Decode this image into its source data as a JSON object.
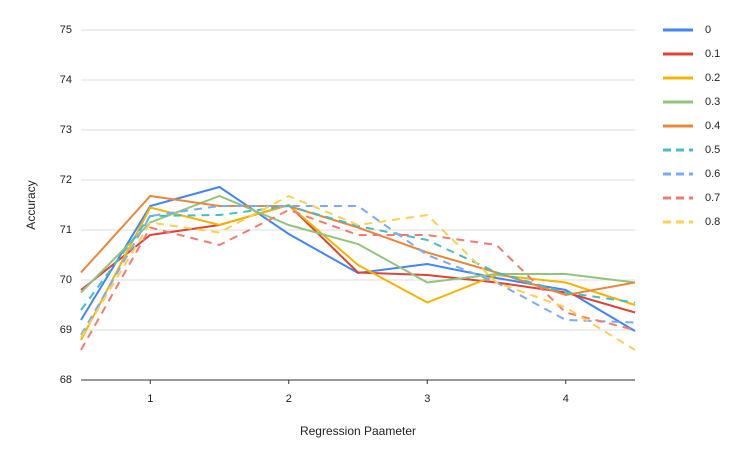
{
  "chart_data": {
    "type": "line",
    "x_label": "Regression Paameter",
    "y_label": "Accuracy",
    "x": [
      0.5,
      1,
      1.5,
      2,
      2.5,
      3,
      3.5,
      4,
      4.5
    ],
    "xlim": [
      0.5,
      4.5
    ],
    "xticks": [
      1,
      2,
      3,
      4
    ],
    "ylim": [
      68,
      75
    ],
    "yticks": [
      68,
      69,
      70,
      71,
      72,
      73,
      74,
      75
    ],
    "grid": true,
    "legend": "right",
    "series": [
      {
        "name": "0",
        "color": "#4285f4",
        "dashed": false,
        "values": [
          69.2,
          71.48,
          71.86,
          70.92,
          70.14,
          70.32,
          70.04,
          69.8,
          68.98
        ]
      },
      {
        "name": "0.1",
        "color": "#db4437",
        "dashed": false,
        "values": [
          69.8,
          70.9,
          71.1,
          71.5,
          70.15,
          70.1,
          69.95,
          69.75,
          69.35
        ]
      },
      {
        "name": "0.2",
        "color": "#f4b400",
        "dashed": false,
        "values": [
          68.8,
          71.45,
          71.1,
          71.5,
          70.3,
          69.55,
          70.1,
          69.95,
          69.5
        ]
      },
      {
        "name": "0.3",
        "color": "#93c47d",
        "dashed": false,
        "values": [
          69.75,
          71.15,
          71.68,
          71.1,
          70.72,
          69.95,
          70.12,
          70.12,
          69.95
        ]
      },
      {
        "name": "0.4",
        "color": "#e8883a",
        "dashed": false,
        "values": [
          70.15,
          71.68,
          71.48,
          71.48,
          71.05,
          70.55,
          70.15,
          69.7,
          69.95
        ]
      },
      {
        "name": "0.5",
        "color": "#46bdc6",
        "dashed": true,
        "values": [
          69.4,
          71.28,
          71.3,
          71.48,
          71.08,
          70.8,
          70.15,
          69.75,
          69.55
        ]
      },
      {
        "name": "0.6",
        "color": "#7baaf7",
        "dashed": true,
        "values": [
          68.9,
          71.28,
          71.48,
          71.48,
          71.48,
          70.5,
          69.95,
          69.2,
          69.15
        ]
      },
      {
        "name": "0.7",
        "color": "#f07b72",
        "dashed": true,
        "values": [
          68.6,
          71.05,
          70.7,
          71.4,
          70.9,
          70.9,
          70.7,
          69.35,
          69.0
        ]
      },
      {
        "name": "0.8",
        "color": "#fcd04f",
        "dashed": true,
        "values": [
          68.85,
          71.15,
          70.95,
          71.68,
          71.1,
          71.3,
          69.95,
          69.45,
          68.6
        ]
      }
    ]
  }
}
